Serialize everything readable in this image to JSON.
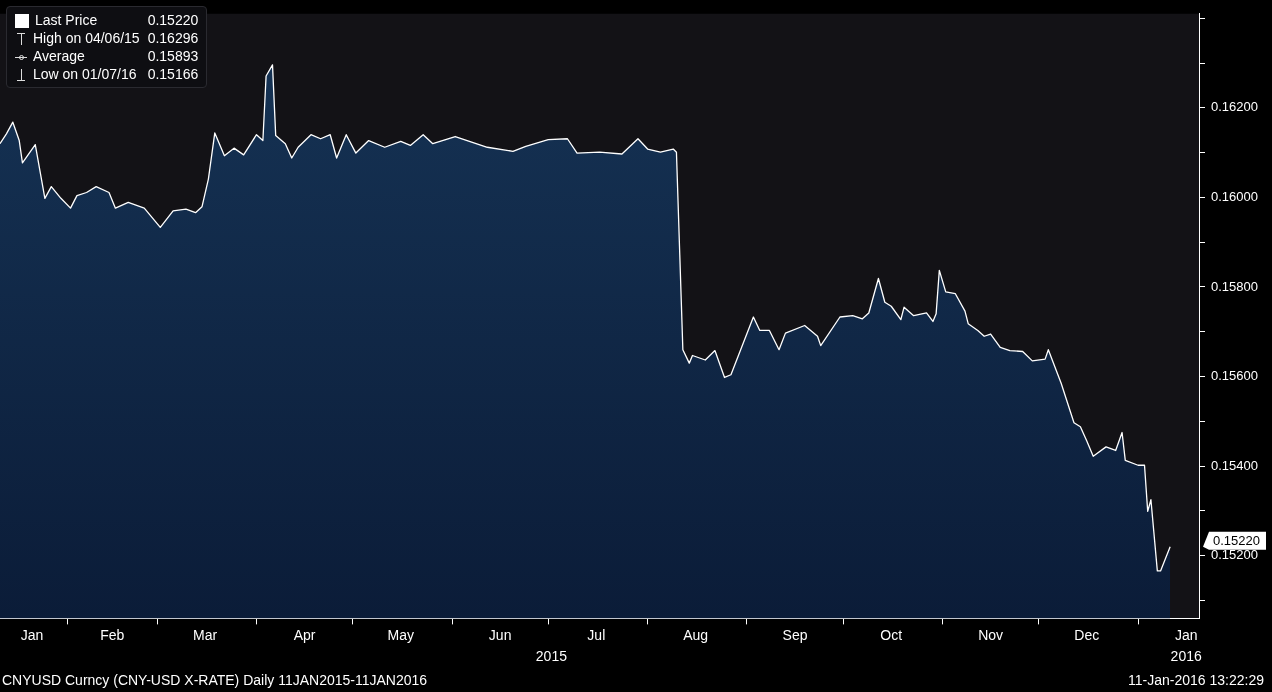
{
  "chart_data": {
    "type": "area",
    "x": [
      "2015-01-11",
      "2015-01-13",
      "2015-01-15",
      "2015-01-17",
      "2015-01-18",
      "2015-01-22",
      "2015-01-25",
      "2015-01-27",
      "2015-01-30",
      "2015-02-02",
      "2015-02-04",
      "2015-02-07",
      "2015-02-10",
      "2015-02-14",
      "2015-02-16",
      "2015-02-20",
      "2015-02-25",
      "2015-03-02",
      "2015-03-06",
      "2015-03-10",
      "2015-03-13",
      "2015-03-15",
      "2015-03-17",
      "2015-03-19",
      "2015-03-22",
      "2015-03-25",
      "2015-03-28",
      "2015-04-01",
      "2015-04-03",
      "2015-04-04",
      "2015-04-06",
      "2015-04-07",
      "2015-04-10",
      "2015-04-12",
      "2015-04-14",
      "2015-04-18",
      "2015-04-21",
      "2015-04-24",
      "2015-04-26",
      "2015-04-29",
      "2015-05-02",
      "2015-05-06",
      "2015-05-11",
      "2015-05-16",
      "2015-05-19",
      "2015-05-23",
      "2015-05-26",
      "2015-06-02",
      "2015-06-12",
      "2015-06-20",
      "2015-06-24",
      "2015-07-01",
      "2015-07-07",
      "2015-07-10",
      "2015-07-17",
      "2015-07-24",
      "2015-07-29",
      "2015-08-01",
      "2015-08-05",
      "2015-08-09",
      "2015-08-10",
      "2015-08-12",
      "2015-08-14",
      "2015-08-15",
      "2015-08-19",
      "2015-08-22",
      "2015-08-25",
      "2015-08-27",
      "2015-09-03",
      "2015-09-05",
      "2015-09-08",
      "2015-09-11",
      "2015-09-13",
      "2015-09-19",
      "2015-09-23",
      "2015-09-24",
      "2015-09-30",
      "2015-10-04",
      "2015-10-07",
      "2015-10-09",
      "2015-10-12",
      "2015-10-14",
      "2015-10-16",
      "2015-10-19",
      "2015-10-20",
      "2015-10-23",
      "2015-10-27",
      "2015-10-29",
      "2015-10-30",
      "2015-10-31",
      "2015-11-02",
      "2015-11-05",
      "2015-11-08",
      "2015-11-09",
      "2015-11-12",
      "2015-11-14",
      "2015-11-16",
      "2015-11-19",
      "2015-11-22",
      "2015-11-26",
      "2015-11-29",
      "2015-12-03",
      "2015-12-04",
      "2015-12-08",
      "2015-12-12",
      "2015-12-14",
      "2015-12-16",
      "2015-12-18",
      "2015-12-22",
      "2015-12-25",
      "2015-12-27",
      "2015-12-28",
      "2016-01-01",
      "2016-01-03",
      "2016-01-04",
      "2016-01-05",
      "2016-01-07",
      "2016-01-08",
      "2016-01-11"
    ],
    "series": [
      {
        "name": "Last Price",
        "color": "#ffffff",
        "values": [
          0.1612,
          0.16142,
          0.16168,
          0.16127,
          0.16077,
          0.16118,
          0.15998,
          0.16024,
          0.15998,
          0.15976,
          0.16004,
          0.16011,
          0.16024,
          0.16011,
          0.15976,
          0.15989,
          0.15976,
          0.15933,
          0.1597,
          0.15974,
          0.15966,
          0.15979,
          0.16041,
          0.16144,
          0.16093,
          0.1611,
          0.16095,
          0.1614,
          0.16127,
          0.16271,
          0.16296,
          0.16138,
          0.1612,
          0.16088,
          0.16112,
          0.1614,
          0.16131,
          0.1614,
          0.16088,
          0.1614,
          0.16099,
          0.16127,
          0.16112,
          0.16125,
          0.16116,
          0.1614,
          0.1612,
          0.16136,
          0.16112,
          0.16103,
          0.16114,
          0.16129,
          0.16131,
          0.16099,
          0.16101,
          0.16097,
          0.16131,
          0.16108,
          0.16101,
          0.16108,
          0.16101,
          0.1566,
          0.1563,
          0.15647,
          0.15637,
          0.15658,
          0.15598,
          0.15604,
          0.15733,
          0.15703,
          0.15703,
          0.1566,
          0.15697,
          0.15714,
          0.1569,
          0.15669,
          0.15733,
          0.15736,
          0.15729,
          0.15742,
          0.15819,
          0.15766,
          0.15757,
          0.15727,
          0.15755,
          0.15736,
          0.15742,
          0.15723,
          0.1574,
          0.15837,
          0.15789,
          0.15785,
          0.15746,
          0.15718,
          0.15703,
          0.1569,
          0.15695,
          0.15665,
          0.15658,
          0.15656,
          0.15635,
          0.15639,
          0.1566,
          0.15585,
          0.15497,
          0.15488,
          0.15456,
          0.15422,
          0.15443,
          0.15435,
          0.15475,
          0.15413,
          0.15402,
          0.15402,
          0.15299,
          0.15325,
          0.15166,
          0.15166,
          0.1522
        ]
      }
    ],
    "xlim": [
      "2015-01-11",
      "2016-01-20"
    ],
    "xticks": [
      {
        "value": "2015-01-21",
        "label": "Jan"
      },
      {
        "value": "2015-02-01",
        "label": null
      },
      {
        "value": "2015-02-15",
        "label": "Feb"
      },
      {
        "value": "2015-03-01",
        "label": null
      },
      {
        "value": "2015-03-16",
        "label": "Mar"
      },
      {
        "value": "2015-04-01",
        "label": null
      },
      {
        "value": "2015-04-16",
        "label": "Apr"
      },
      {
        "value": "2015-05-01",
        "label": null
      },
      {
        "value": "2015-05-16",
        "label": "May"
      },
      {
        "value": "2015-06-01",
        "label": null
      },
      {
        "value": "2015-06-16",
        "label": "Jun"
      },
      {
        "value": "2015-07-01",
        "label": null
      },
      {
        "value": "2015-07-16",
        "label": "Jul"
      },
      {
        "value": "2015-08-01",
        "label": null
      },
      {
        "value": "2015-08-16",
        "label": "Aug"
      },
      {
        "value": "2015-09-01",
        "label": null
      },
      {
        "value": "2015-09-16",
        "label": "Sep"
      },
      {
        "value": "2015-10-01",
        "label": null
      },
      {
        "value": "2015-10-16",
        "label": "Oct"
      },
      {
        "value": "2015-11-01",
        "label": null
      },
      {
        "value": "2015-11-16",
        "label": "Nov"
      },
      {
        "value": "2015-12-01",
        "label": null
      },
      {
        "value": "2015-12-16",
        "label": "Dec"
      },
      {
        "value": "2016-01-01",
        "label": null
      },
      {
        "value": "2016-01-16",
        "label": "Jan"
      }
    ],
    "x2lim": [
      "2015-01-11",
      "2016-01-20"
    ],
    "x2ticks": [
      {
        "value": "2015-07-02",
        "label": "2015"
      },
      {
        "value": "2016-01-16",
        "label": "2016"
      }
    ],
    "ylim": [
      0.1506,
      0.1641
    ],
    "yticks": [
      {
        "value": 0.151,
        "label": null
      },
      {
        "value": 0.152,
        "label": "0.15200"
      },
      {
        "value": 0.153,
        "label": null
      },
      {
        "value": 0.154,
        "label": "0.15400"
      },
      {
        "value": 0.155,
        "label": null
      },
      {
        "value": 0.156,
        "label": "0.15600"
      },
      {
        "value": 0.157,
        "label": null
      },
      {
        "value": 0.158,
        "label": "0.15800"
      },
      {
        "value": 0.159,
        "label": null
      },
      {
        "value": 0.16,
        "label": "0.16000"
      },
      {
        "value": 0.161,
        "label": null
      },
      {
        "value": 0.162,
        "label": "0.16200"
      },
      {
        "value": 0.163,
        "label": null
      },
      {
        "value": 0.164,
        "label": null
      }
    ],
    "legend": "top left",
    "grid": false,
    "annotations": [
      "0.15220",
      "High on 04/06/15",
      "0.16296",
      "Average",
      "0.15893",
      "Low on 01/07/16",
      "0.15166",
      "CNYUSD Curncy (CNY-USD X-RATE)  Daily 11JAN2015-11JAN2016",
      "11-Jan-2016 13:22:29"
    ]
  }
}
